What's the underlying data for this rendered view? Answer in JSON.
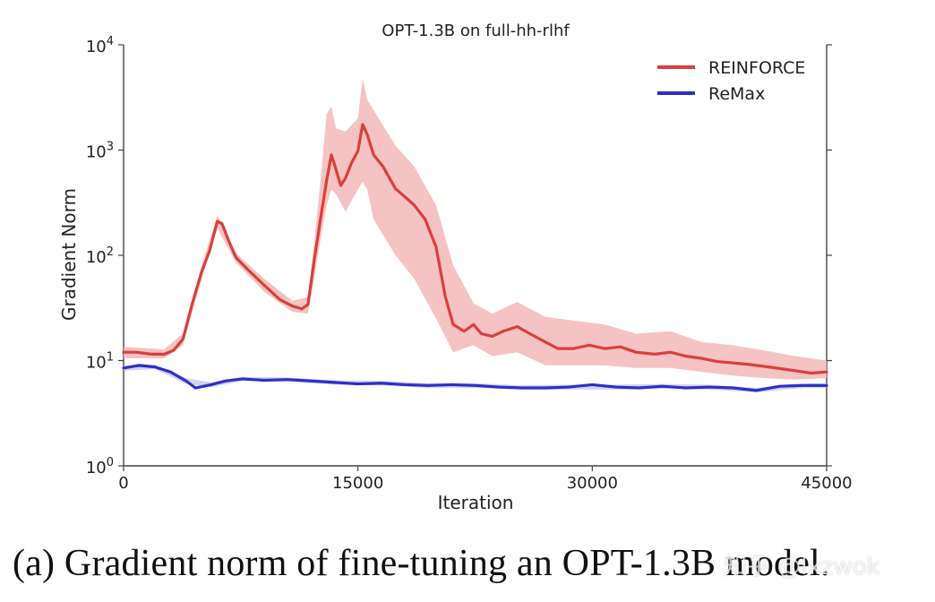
{
  "chart_data": {
    "type": "line",
    "title": "OPT-1.3B on full-hh-rlhf",
    "xlabel": "Iteration",
    "ylabel": "Gradient Norm",
    "xlim": [
      0,
      45000
    ],
    "ylim": [
      1,
      10000
    ],
    "yscale": "log",
    "x_ticks": [
      0,
      15000,
      30000,
      45000
    ],
    "x_tick_labels": [
      "0",
      "15000",
      "30000",
      "45000"
    ],
    "y_ticks": [
      1,
      10,
      100,
      1000,
      10000
    ],
    "y_tick_labels": [
      {
        "base": "10",
        "exp": "0"
      },
      {
        "base": "10",
        "exp": "1"
      },
      {
        "base": "10",
        "exp": "2"
      },
      {
        "base": "10",
        "exp": "3"
      },
      {
        "base": "10",
        "exp": "4"
      }
    ],
    "legend": {
      "position": "top-right"
    },
    "series": [
      {
        "name": "REINFORCE",
        "color": "#d9403a",
        "band_color": "#f3b8b8",
        "points": [
          [
            0,
            12
          ],
          [
            800,
            12
          ],
          [
            1800,
            11.5
          ],
          [
            2600,
            11.5
          ],
          [
            3200,
            12.5
          ],
          [
            3800,
            16
          ],
          [
            4400,
            35
          ],
          [
            5000,
            70
          ],
          [
            5500,
            110
          ],
          [
            6000,
            210
          ],
          [
            6300,
            200
          ],
          [
            6700,
            140
          ],
          [
            7200,
            95
          ],
          [
            8000,
            72
          ],
          [
            9000,
            52
          ],
          [
            10000,
            38
          ],
          [
            10800,
            33
          ],
          [
            11400,
            31
          ],
          [
            11800,
            34
          ],
          [
            12200,
            90
          ],
          [
            12600,
            220
          ],
          [
            13000,
            520
          ],
          [
            13300,
            900
          ],
          [
            13600,
            650
          ],
          [
            13900,
            460
          ],
          [
            14200,
            540
          ],
          [
            14600,
            760
          ],
          [
            15000,
            980
          ],
          [
            15300,
            1750
          ],
          [
            15600,
            1400
          ],
          [
            16000,
            900
          ],
          [
            16600,
            700
          ],
          [
            17400,
            430
          ],
          [
            18000,
            360
          ],
          [
            18600,
            300
          ],
          [
            19300,
            220
          ],
          [
            20000,
            120
          ],
          [
            20600,
            40
          ],
          [
            21100,
            22
          ],
          [
            21800,
            19
          ],
          [
            22400,
            22
          ],
          [
            22900,
            18
          ],
          [
            23600,
            17
          ],
          [
            24300,
            19
          ],
          [
            25200,
            21
          ],
          [
            26000,
            18
          ],
          [
            27000,
            15
          ],
          [
            27800,
            13
          ],
          [
            28800,
            13
          ],
          [
            29800,
            14
          ],
          [
            30800,
            13
          ],
          [
            31800,
            13.5
          ],
          [
            32800,
            12
          ],
          [
            34000,
            11.5
          ],
          [
            35000,
            12
          ],
          [
            36000,
            11
          ],
          [
            37000,
            10.5
          ],
          [
            38000,
            9.8
          ],
          [
            39000,
            9.5
          ],
          [
            40000,
            9.2
          ],
          [
            41000,
            8.8
          ],
          [
            42000,
            8.4
          ],
          [
            43000,
            8
          ],
          [
            44000,
            7.6
          ],
          [
            45000,
            7.8
          ]
        ],
        "band": [
          [
            0,
            10.5,
            13.5
          ],
          [
            2600,
            10.5,
            12.8
          ],
          [
            3800,
            14,
            18
          ],
          [
            5000,
            60,
            80
          ],
          [
            6000,
            180,
            240
          ],
          [
            7200,
            85,
            105
          ],
          [
            9000,
            45,
            60
          ],
          [
            10800,
            29,
            37
          ],
          [
            11800,
            28,
            40
          ],
          [
            12200,
            60,
            130
          ],
          [
            12600,
            140,
            500
          ],
          [
            13000,
            300,
            2200
          ],
          [
            13300,
            420,
            2600
          ],
          [
            13600,
            380,
            1600
          ],
          [
            14200,
            260,
            1500
          ],
          [
            15000,
            420,
            2000
          ],
          [
            15300,
            500,
            4800
          ],
          [
            15600,
            420,
            3000
          ],
          [
            16000,
            220,
            2400
          ],
          [
            17400,
            100,
            1100
          ],
          [
            18600,
            60,
            700
          ],
          [
            20000,
            25,
            300
          ],
          [
            21100,
            12,
            80
          ],
          [
            22400,
            14,
            35
          ],
          [
            23600,
            11,
            28
          ],
          [
            25200,
            12,
            36
          ],
          [
            27000,
            9,
            26
          ],
          [
            28800,
            9,
            24
          ],
          [
            30800,
            9,
            22
          ],
          [
            32800,
            8.5,
            18
          ],
          [
            35000,
            8.5,
            19
          ],
          [
            37000,
            7.8,
            15
          ],
          [
            39000,
            7.2,
            14
          ],
          [
            41000,
            6.8,
            12.5
          ],
          [
            43000,
            6.6,
            11
          ],
          [
            45000,
            6.8,
            10
          ]
        ]
      },
      {
        "name": "ReMax",
        "color": "#2c2fc8",
        "band_color": "#c7c9f1",
        "points": [
          [
            0,
            8.5
          ],
          [
            1000,
            9.0
          ],
          [
            2000,
            8.7
          ],
          [
            3000,
            7.8
          ],
          [
            4000,
            6.4
          ],
          [
            4600,
            5.5
          ],
          [
            5600,
            5.9
          ],
          [
            6500,
            6.4
          ],
          [
            7600,
            6.7
          ],
          [
            9000,
            6.5
          ],
          [
            10500,
            6.6
          ],
          [
            12000,
            6.4
          ],
          [
            13500,
            6.2
          ],
          [
            15000,
            6.0
          ],
          [
            16500,
            6.1
          ],
          [
            18000,
            5.9
          ],
          [
            19500,
            5.8
          ],
          [
            21000,
            5.9
          ],
          [
            22500,
            5.8
          ],
          [
            24000,
            5.6
          ],
          [
            25500,
            5.5
          ],
          [
            27000,
            5.5
          ],
          [
            28500,
            5.6
          ],
          [
            30000,
            5.9
          ],
          [
            31500,
            5.6
          ],
          [
            33000,
            5.5
          ],
          [
            34500,
            5.7
          ],
          [
            36000,
            5.5
          ],
          [
            37500,
            5.6
          ],
          [
            39000,
            5.5
          ],
          [
            40500,
            5.2
          ],
          [
            42000,
            5.7
          ],
          [
            43500,
            5.8
          ],
          [
            45000,
            5.8
          ]
        ],
        "band": [
          [
            0,
            8.0,
            8.9
          ],
          [
            2000,
            8.3,
            9.1
          ],
          [
            4000,
            6.0,
            6.8
          ],
          [
            5600,
            5.6,
            6.2
          ],
          [
            7600,
            6.4,
            7.0
          ],
          [
            10500,
            6.3,
            6.9
          ],
          [
            13500,
            5.9,
            6.5
          ],
          [
            16500,
            5.8,
            6.4
          ],
          [
            19500,
            5.5,
            6.1
          ],
          [
            22500,
            5.5,
            6.1
          ],
          [
            25500,
            5.3,
            5.8
          ],
          [
            28500,
            5.3,
            5.9
          ],
          [
            31500,
            5.3,
            5.9
          ],
          [
            34500,
            5.4,
            6.0
          ],
          [
            37500,
            5.3,
            5.9
          ],
          [
            40500,
            5.0,
            5.5
          ],
          [
            43500,
            5.5,
            6.1
          ],
          [
            45000,
            5.5,
            6.1
          ]
        ]
      }
    ]
  },
  "caption": "(a) Gradient norm of fine-tuning an OPT-1.3B model.",
  "watermark": "知乎 @lxzwok"
}
